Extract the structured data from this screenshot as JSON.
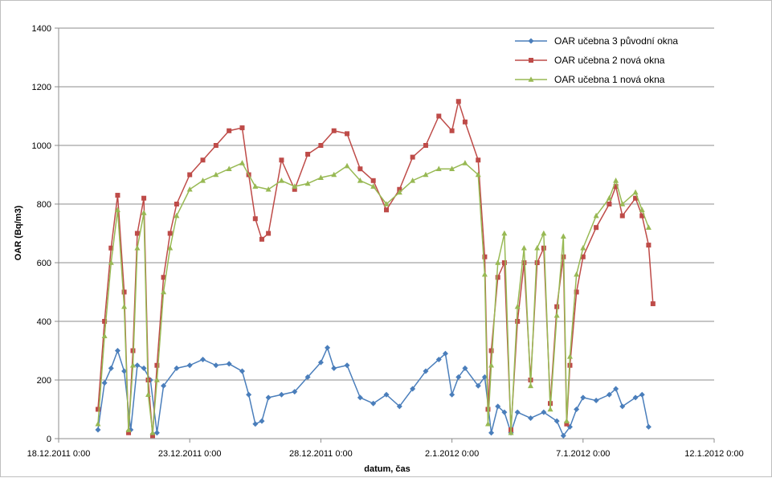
{
  "chart_data": {
    "type": "line",
    "title": "",
    "xlabel": "datum, čas",
    "ylabel": "OAR (Bq/m3)",
    "ylim": [
      0,
      1400
    ],
    "yticks": [
      0,
      200,
      400,
      600,
      800,
      1000,
      1200,
      1400
    ],
    "xlim": [
      "2011-12-18 00:00",
      "2012-01-12 00:00"
    ],
    "xtick_labels": [
      "18.12.2011 0:00",
      "23.12.2011 0:00",
      "28.12.2011 0:00",
      "2.1.2012 0:00",
      "7.1.2012 0:00",
      "12.1.2012 0:00"
    ],
    "grid": "horizontal",
    "legend_position": "top-right",
    "series": [
      {
        "name": "OAR učebna 3 původní okna",
        "color": "#4a7ebb",
        "marker": "diamond",
        "points": [
          [
            "2011-12-19 12:00",
            30
          ],
          [
            "2011-12-19 18:00",
            190
          ],
          [
            "2011-12-20 00:00",
            240
          ],
          [
            "2011-12-20 06:00",
            300
          ],
          [
            "2011-12-20 12:00",
            230
          ],
          [
            "2011-12-20 18:00",
            30
          ],
          [
            "2011-12-21 00:00",
            250
          ],
          [
            "2011-12-21 06:00",
            240
          ],
          [
            "2011-12-21 12:00",
            200
          ],
          [
            "2011-12-21 18:00",
            20
          ],
          [
            "2011-12-22 00:00",
            180
          ],
          [
            "2011-12-22 12:00",
            240
          ],
          [
            "2011-12-23 00:00",
            250
          ],
          [
            "2011-12-23 12:00",
            270
          ],
          [
            "2011-12-24 00:00",
            250
          ],
          [
            "2011-12-24 12:00",
            255
          ],
          [
            "2011-12-25 00:00",
            230
          ],
          [
            "2011-12-25 06:00",
            150
          ],
          [
            "2011-12-25 12:00",
            50
          ],
          [
            "2011-12-25 18:00",
            60
          ],
          [
            "2011-12-26 00:00",
            140
          ],
          [
            "2011-12-26 12:00",
            150
          ],
          [
            "2011-12-27 00:00",
            160
          ],
          [
            "2011-12-27 12:00",
            210
          ],
          [
            "2011-12-28 00:00",
            260
          ],
          [
            "2011-12-28 06:00",
            310
          ],
          [
            "2011-12-28 12:00",
            240
          ],
          [
            "2011-12-29 00:00",
            250
          ],
          [
            "2011-12-29 12:00",
            140
          ],
          [
            "2011-12-30 00:00",
            120
          ],
          [
            "2011-12-30 12:00",
            150
          ],
          [
            "2011-12-31 00:00",
            110
          ],
          [
            "2011-12-31 12:00",
            170
          ],
          [
            "2012-01-01 00:00",
            230
          ],
          [
            "2012-01-01 12:00",
            270
          ],
          [
            "2012-01-01 18:00",
            290
          ],
          [
            "2012-01-02 00:00",
            150
          ],
          [
            "2012-01-02 06:00",
            210
          ],
          [
            "2012-01-02 12:00",
            240
          ],
          [
            "2012-01-03 00:00",
            180
          ],
          [
            "2012-01-03 06:00",
            210
          ],
          [
            "2012-01-03 12:00",
            20
          ],
          [
            "2012-01-03 18:00",
            110
          ],
          [
            "2012-01-04 00:00",
            90
          ],
          [
            "2012-01-04 06:00",
            20
          ],
          [
            "2012-01-04 12:00",
            90
          ],
          [
            "2012-01-05 00:00",
            70
          ],
          [
            "2012-01-05 12:00",
            90
          ],
          [
            "2012-01-06 00:00",
            60
          ],
          [
            "2012-01-06 06:00",
            10
          ],
          [
            "2012-01-06 12:00",
            40
          ],
          [
            "2012-01-06 18:00",
            100
          ],
          [
            "2012-01-07 00:00",
            140
          ],
          [
            "2012-01-07 12:00",
            130
          ],
          [
            "2012-01-08 00:00",
            150
          ],
          [
            "2012-01-08 06:00",
            170
          ],
          [
            "2012-01-08 12:00",
            110
          ],
          [
            "2012-01-09 00:00",
            140
          ],
          [
            "2012-01-09 06:00",
            150
          ],
          [
            "2012-01-09 12:00",
            40
          ]
        ]
      },
      {
        "name": "OAR učebna 2 nová okna",
        "color": "#be4b48",
        "marker": "square",
        "points": [
          [
            "2011-12-19 12:00",
            100
          ],
          [
            "2011-12-19 18:00",
            400
          ],
          [
            "2011-12-20 00:00",
            650
          ],
          [
            "2011-12-20 06:00",
            830
          ],
          [
            "2011-12-20 12:00",
            500
          ],
          [
            "2011-12-20 16:00",
            20
          ],
          [
            "2011-12-20 20:00",
            300
          ],
          [
            "2011-12-21 00:00",
            700
          ],
          [
            "2011-12-21 06:00",
            820
          ],
          [
            "2011-12-21 10:00",
            200
          ],
          [
            "2011-12-21 14:00",
            10
          ],
          [
            "2011-12-21 18:00",
            250
          ],
          [
            "2011-12-22 00:00",
            550
          ],
          [
            "2011-12-22 06:00",
            700
          ],
          [
            "2011-12-22 12:00",
            800
          ],
          [
            "2011-12-23 00:00",
            900
          ],
          [
            "2011-12-23 12:00",
            950
          ],
          [
            "2011-12-24 00:00",
            1000
          ],
          [
            "2011-12-24 12:00",
            1050
          ],
          [
            "2011-12-25 00:00",
            1060
          ],
          [
            "2011-12-25 06:00",
            900
          ],
          [
            "2011-12-25 12:00",
            750
          ],
          [
            "2011-12-25 18:00",
            680
          ],
          [
            "2011-12-26 00:00",
            700
          ],
          [
            "2011-12-26 12:00",
            950
          ],
          [
            "2011-12-27 00:00",
            850
          ],
          [
            "2011-12-27 12:00",
            970
          ],
          [
            "2011-12-28 00:00",
            1000
          ],
          [
            "2011-12-28 12:00",
            1050
          ],
          [
            "2011-12-29 00:00",
            1040
          ],
          [
            "2011-12-29 12:00",
            920
          ],
          [
            "2011-12-30 00:00",
            880
          ],
          [
            "2011-12-30 12:00",
            780
          ],
          [
            "2011-12-31 00:00",
            850
          ],
          [
            "2011-12-31 12:00",
            960
          ],
          [
            "2012-01-01 00:00",
            1000
          ],
          [
            "2012-01-01 12:00",
            1100
          ],
          [
            "2012-01-02 00:00",
            1050
          ],
          [
            "2012-01-02 06:00",
            1150
          ],
          [
            "2012-01-02 12:00",
            1080
          ],
          [
            "2012-01-03 00:00",
            950
          ],
          [
            "2012-01-03 06:00",
            620
          ],
          [
            "2012-01-03 09:00",
            100
          ],
          [
            "2012-01-03 12:00",
            300
          ],
          [
            "2012-01-03 18:00",
            550
          ],
          [
            "2012-01-04 00:00",
            600
          ],
          [
            "2012-01-04 06:00",
            30
          ],
          [
            "2012-01-04 12:00",
            400
          ],
          [
            "2012-01-04 18:00",
            600
          ],
          [
            "2012-01-05 00:00",
            200
          ],
          [
            "2012-01-05 06:00",
            600
          ],
          [
            "2012-01-05 12:00",
            650
          ],
          [
            "2012-01-05 18:00",
            120
          ],
          [
            "2012-01-06 00:00",
            450
          ],
          [
            "2012-01-06 06:00",
            620
          ],
          [
            "2012-01-06 09:00",
            50
          ],
          [
            "2012-01-06 12:00",
            250
          ],
          [
            "2012-01-06 18:00",
            500
          ],
          [
            "2012-01-07 00:00",
            620
          ],
          [
            "2012-01-07 12:00",
            720
          ],
          [
            "2012-01-08 00:00",
            800
          ],
          [
            "2012-01-08 06:00",
            860
          ],
          [
            "2012-01-08 12:00",
            760
          ],
          [
            "2012-01-09 00:00",
            820
          ],
          [
            "2012-01-09 06:00",
            760
          ],
          [
            "2012-01-09 12:00",
            660
          ],
          [
            "2012-01-09 16:00",
            460
          ]
        ]
      },
      {
        "name": "OAR učebna 1 nová okna",
        "color": "#98b954",
        "marker": "triangle",
        "points": [
          [
            "2011-12-19 12:00",
            50
          ],
          [
            "2011-12-19 18:00",
            350
          ],
          [
            "2011-12-20 00:00",
            600
          ],
          [
            "2011-12-20 06:00",
            780
          ],
          [
            "2011-12-20 12:00",
            450
          ],
          [
            "2011-12-20 16:00",
            30
          ],
          [
            "2011-12-20 20:00",
            250
          ],
          [
            "2011-12-21 00:00",
            650
          ],
          [
            "2011-12-21 06:00",
            770
          ],
          [
            "2011-12-21 10:00",
            150
          ],
          [
            "2011-12-21 14:00",
            20
          ],
          [
            "2011-12-21 18:00",
            200
          ],
          [
            "2011-12-22 00:00",
            500
          ],
          [
            "2011-12-22 06:00",
            650
          ],
          [
            "2011-12-22 12:00",
            760
          ],
          [
            "2011-12-23 00:00",
            850
          ],
          [
            "2011-12-23 12:00",
            880
          ],
          [
            "2011-12-24 00:00",
            900
          ],
          [
            "2011-12-24 12:00",
            920
          ],
          [
            "2011-12-25 00:00",
            940
          ],
          [
            "2011-12-25 12:00",
            860
          ],
          [
            "2011-12-26 00:00",
            850
          ],
          [
            "2011-12-26 12:00",
            880
          ],
          [
            "2011-12-27 00:00",
            860
          ],
          [
            "2011-12-27 12:00",
            870
          ],
          [
            "2011-12-28 00:00",
            890
          ],
          [
            "2011-12-28 12:00",
            900
          ],
          [
            "2011-12-29 00:00",
            930
          ],
          [
            "2011-12-29 12:00",
            880
          ],
          [
            "2011-12-30 00:00",
            860
          ],
          [
            "2011-12-30 12:00",
            800
          ],
          [
            "2011-12-31 00:00",
            840
          ],
          [
            "2011-12-31 12:00",
            880
          ],
          [
            "2012-01-01 00:00",
            900
          ],
          [
            "2012-01-01 12:00",
            920
          ],
          [
            "2012-01-02 00:00",
            920
          ],
          [
            "2012-01-02 12:00",
            940
          ],
          [
            "2012-01-03 00:00",
            900
          ],
          [
            "2012-01-03 06:00",
            560
          ],
          [
            "2012-01-03 09:00",
            50
          ],
          [
            "2012-01-03 12:00",
            250
          ],
          [
            "2012-01-03 18:00",
            600
          ],
          [
            "2012-01-04 00:00",
            700
          ],
          [
            "2012-01-04 06:00",
            20
          ],
          [
            "2012-01-04 12:00",
            450
          ],
          [
            "2012-01-04 18:00",
            650
          ],
          [
            "2012-01-05 00:00",
            180
          ],
          [
            "2012-01-05 06:00",
            650
          ],
          [
            "2012-01-05 12:00",
            700
          ],
          [
            "2012-01-05 18:00",
            100
          ],
          [
            "2012-01-06 00:00",
            420
          ],
          [
            "2012-01-06 06:00",
            690
          ],
          [
            "2012-01-06 09:00",
            60
          ],
          [
            "2012-01-06 12:00",
            280
          ],
          [
            "2012-01-06 18:00",
            560
          ],
          [
            "2012-01-07 00:00",
            650
          ],
          [
            "2012-01-07 12:00",
            760
          ],
          [
            "2012-01-08 00:00",
            820
          ],
          [
            "2012-01-08 06:00",
            880
          ],
          [
            "2012-01-08 12:00",
            800
          ],
          [
            "2012-01-09 00:00",
            840
          ],
          [
            "2012-01-09 06:00",
            780
          ],
          [
            "2012-01-09 12:00",
            720
          ]
        ]
      }
    ]
  }
}
